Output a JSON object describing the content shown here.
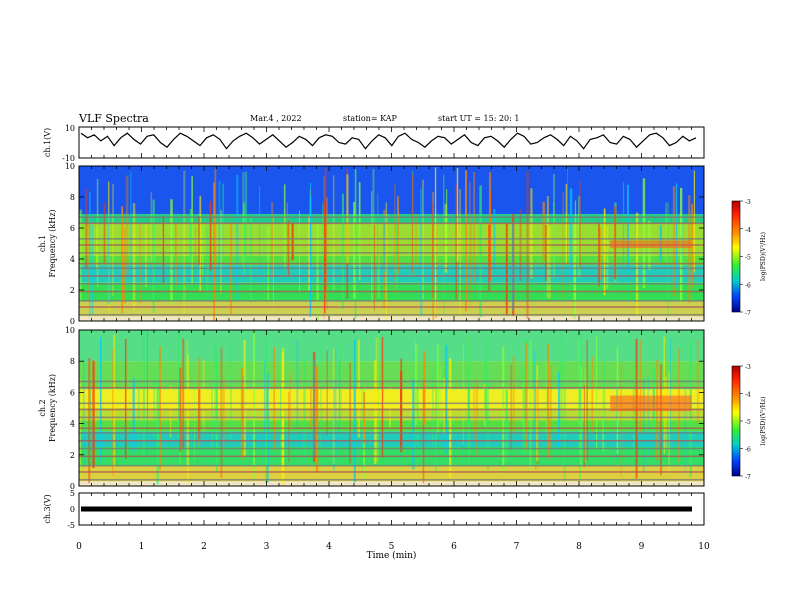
{
  "header": {
    "title": "VLF Spectra",
    "date": "Mar.4 , 2022",
    "station": "station= KAP",
    "start_ut": "start UT = 15: 20: 1"
  },
  "chart_data": [
    {
      "type": "line",
      "panel": "ch1-waveform",
      "ylabel": "ch.1(V)",
      "ylim": [
        -10,
        10
      ],
      "y_tick_labels": [
        "10",
        "-10"
      ],
      "series": [
        {
          "values_note_free": true,
          "values": [
            6,
            3,
            5,
            1,
            4,
            -2,
            3,
            6,
            2,
            -1,
            4,
            5,
            0,
            -3,
            2,
            6,
            4,
            1,
            -2,
            3,
            5,
            2,
            -4,
            1,
            4,
            6,
            3,
            -1,
            2,
            5,
            1,
            -3,
            0,
            4,
            2,
            -2,
            3,
            5,
            4,
            0,
            -1,
            3,
            2,
            -4,
            1,
            5,
            3,
            -2,
            4,
            6,
            2,
            0,
            -3,
            1,
            4,
            3,
            -1,
            2,
            5,
            0,
            -2,
            3,
            4,
            1,
            -3,
            2,
            6,
            4,
            -1,
            0,
            3,
            5,
            2,
            -2,
            4,
            1,
            -4,
            2,
            3,
            5,
            0,
            -1,
            4,
            2,
            -3,
            1,
            5,
            6,
            3,
            -2,
            0,
            4,
            1,
            3
          ]
        }
      ]
    },
    {
      "type": "heatmap",
      "panel": "ch1-spectrogram",
      "ylabel": "ch.1 Frequency (kHz)",
      "ylim": [
        0,
        10
      ],
      "y_ticks": [
        0,
        2,
        4,
        6,
        8,
        10
      ],
      "colorbar": {
        "label": "log(PSD)(V²/Hz)",
        "ticks": [
          -3,
          -4,
          -5,
          -6,
          -7
        ],
        "range": [
          -7,
          -3
        ]
      }
    },
    {
      "type": "heatmap",
      "panel": "ch2-spectrogram",
      "ylabel": "ch.2 Frequency (kHz)",
      "ylim": [
        0,
        10
      ],
      "y_ticks": [
        0,
        2,
        4,
        6,
        8,
        10
      ],
      "colorbar": {
        "label": "log(PSD)(V²/Hz)",
        "ticks": [
          -3,
          -4,
          -5,
          -6,
          -7
        ],
        "range": [
          -7,
          -3
        ]
      }
    },
    {
      "type": "line",
      "panel": "ch3-waveform",
      "ylabel": "ch.3(V)",
      "ylim": [
        -5,
        5
      ],
      "y_tick_labels": [
        "5",
        "0",
        "-5"
      ],
      "series": [
        {
          "values": [
            0,
            0,
            0,
            0,
            0,
            0,
            0,
            0,
            0,
            0,
            0
          ]
        }
      ]
    }
  ],
  "xaxis": {
    "label": "Time (min)",
    "xlim": [
      0,
      10
    ],
    "ticks": [
      "0",
      "1",
      "2",
      "3",
      "4",
      "5",
      "6",
      "7",
      "8",
      "9",
      "10"
    ]
  },
  "colors": {
    "trace": "#000000",
    "axis": "#000000"
  }
}
